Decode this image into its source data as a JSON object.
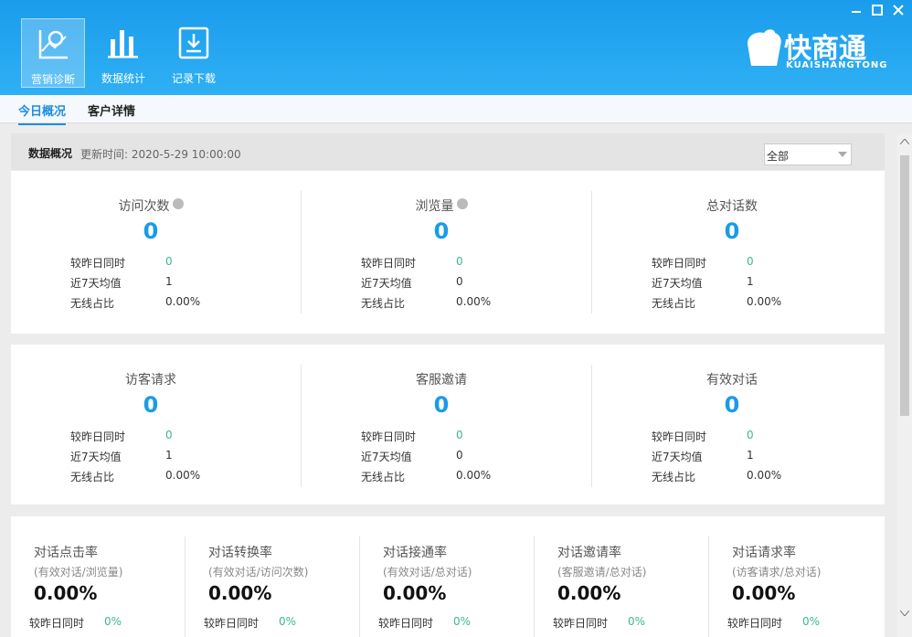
{
  "nav": [
    {
      "label": "营销诊断",
      "selected": true
    },
    {
      "label": "数据统计"
    },
    {
      "label": "记录下载"
    }
  ],
  "brand": {
    "name": "快商通",
    "sub": "KUAISHANGTONG"
  },
  "tabs": [
    {
      "label": "今日概况",
      "selected": true
    },
    {
      "label": "客户详情"
    }
  ],
  "overview": {
    "title": "数据概况",
    "update": "更新时间: 2020-5-29 10:00:00",
    "filter": "全部"
  },
  "cards": [
    {
      "title": "访问次数",
      "help": true,
      "value": 0,
      "rows": [
        [
          "较昨日同时",
          0
        ],
        [
          "近7天均值",
          1
        ],
        [
          "无线占比",
          "0.00%"
        ]
      ]
    },
    {
      "title": "浏览量",
      "help": true,
      "value": 0,
      "rows": [
        [
          "较昨日同时",
          0
        ],
        [
          "近7天均值",
          0
        ],
        [
          "无线占比",
          "0.00%"
        ]
      ]
    },
    {
      "title": "总对话数",
      "value": 0,
      "rows": [
        [
          "较昨日同时",
          0
        ],
        [
          "近7天均值",
          1
        ],
        [
          "无线占比",
          "0.00%"
        ]
      ]
    },
    {
      "title": "访客请求",
      "value": 0,
      "rows": [
        [
          "较昨日同时",
          0
        ],
        [
          "近7天均值",
          1
        ],
        [
          "无线占比",
          "0.00%"
        ]
      ]
    },
    {
      "title": "客服邀请",
      "value": 0,
      "rows": [
        [
          "较昨日同时",
          0
        ],
        [
          "近7天均值",
          0
        ],
        [
          "无线占比",
          "0.00%"
        ]
      ]
    },
    {
      "title": "有效对话",
      "value": 0,
      "rows": [
        [
          "较昨日同时",
          0
        ],
        [
          "近7天均值",
          1
        ],
        [
          "无线占比",
          "0.00%"
        ]
      ]
    }
  ],
  "rates": [
    {
      "title": "对话点击率",
      "formula": "(有效对话/浏览量)",
      "value": "0.00%",
      "compare_label": "较昨日同时",
      "compare": "0%"
    },
    {
      "title": "对话转换率",
      "formula": "(有效对话/访问次数)",
      "value": "0.00%",
      "compare_label": "较昨日同时",
      "compare": "0%"
    },
    {
      "title": "对话接通率",
      "formula": "(有效对话/总对话)",
      "value": "0.00%",
      "compare_label": "较昨日同时",
      "compare": "0%"
    },
    {
      "title": "对话邀请率",
      "formula": "(客服邀请/总对话)",
      "value": "0.00%",
      "compare_label": "较昨日同时",
      "compare": "0%"
    },
    {
      "title": "对话请求率",
      "formula": "(访客请求/总对话)",
      "value": "0.00%",
      "compare_label": "较昨日同时",
      "compare": "0%"
    }
  ]
}
